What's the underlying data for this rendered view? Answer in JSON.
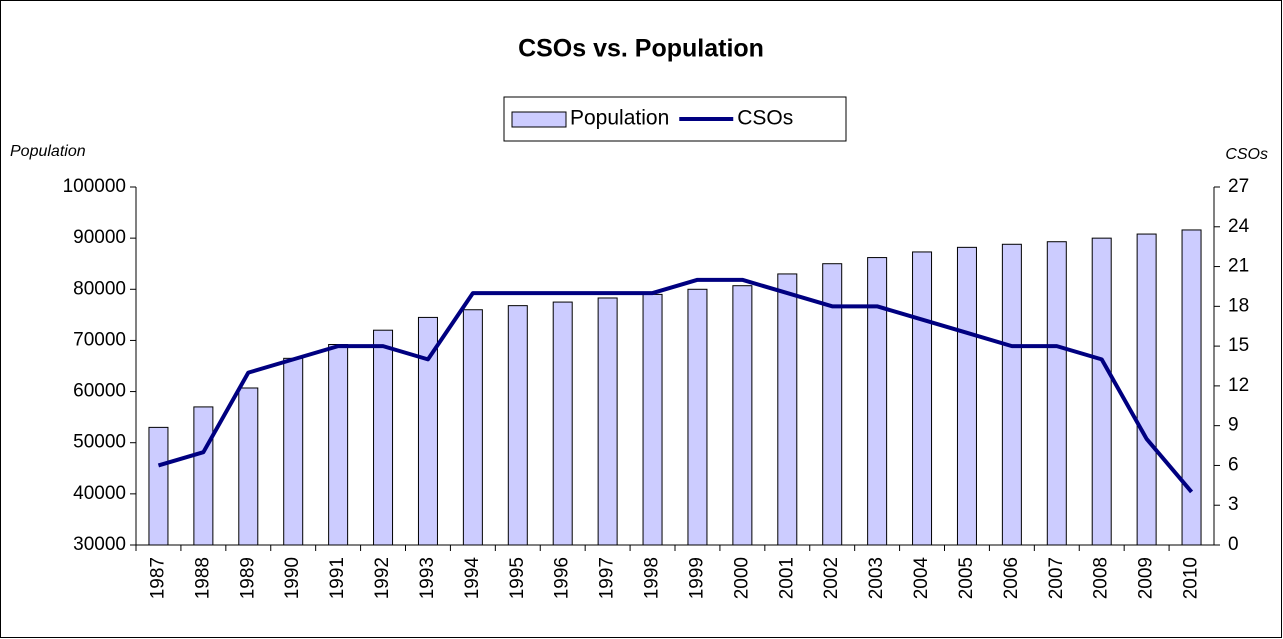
{
  "chart_data": {
    "type": "bar_line",
    "title": "CSOs vs. Population",
    "y_label": "Population",
    "y2_label": "CSOs",
    "categories": [
      "1987",
      "1988",
      "1989",
      "1990",
      "1991",
      "1992",
      "1993",
      "1994",
      "1995",
      "1996",
      "1997",
      "1998",
      "1999",
      "2000",
      "2001",
      "2002",
      "2003",
      "2004",
      "2005",
      "2006",
      "2007",
      "2008",
      "2009",
      "2010"
    ],
    "series": [
      {
        "name": "Population",
        "type": "bar",
        "color": "#ccccff",
        "values": [
          53000,
          57000,
          60700,
          66500,
          69200,
          72000,
          74500,
          76000,
          76800,
          77500,
          78300,
          79000,
          80000,
          80700,
          83000,
          85000,
          86200,
          87300,
          88200,
          88800,
          89300,
          90000,
          90800,
          91600
        ]
      },
      {
        "name": "CSOs",
        "type": "line",
        "axis": "y2",
        "color": "#000080",
        "values": [
          6,
          7,
          13,
          14,
          15,
          15,
          14,
          19,
          19,
          19,
          19,
          19,
          20,
          20,
          19,
          18,
          18,
          17,
          16,
          15,
          15,
          14,
          8,
          4
        ]
      }
    ],
    "ylim": [
      30000,
      100000
    ],
    "yticks": [
      30000,
      40000,
      50000,
      60000,
      70000,
      80000,
      90000,
      100000
    ],
    "y2lim": [
      0,
      27
    ],
    "y2ticks": [
      0,
      3,
      6,
      9,
      12,
      15,
      18,
      21,
      24,
      27
    ],
    "legend": "top"
  }
}
